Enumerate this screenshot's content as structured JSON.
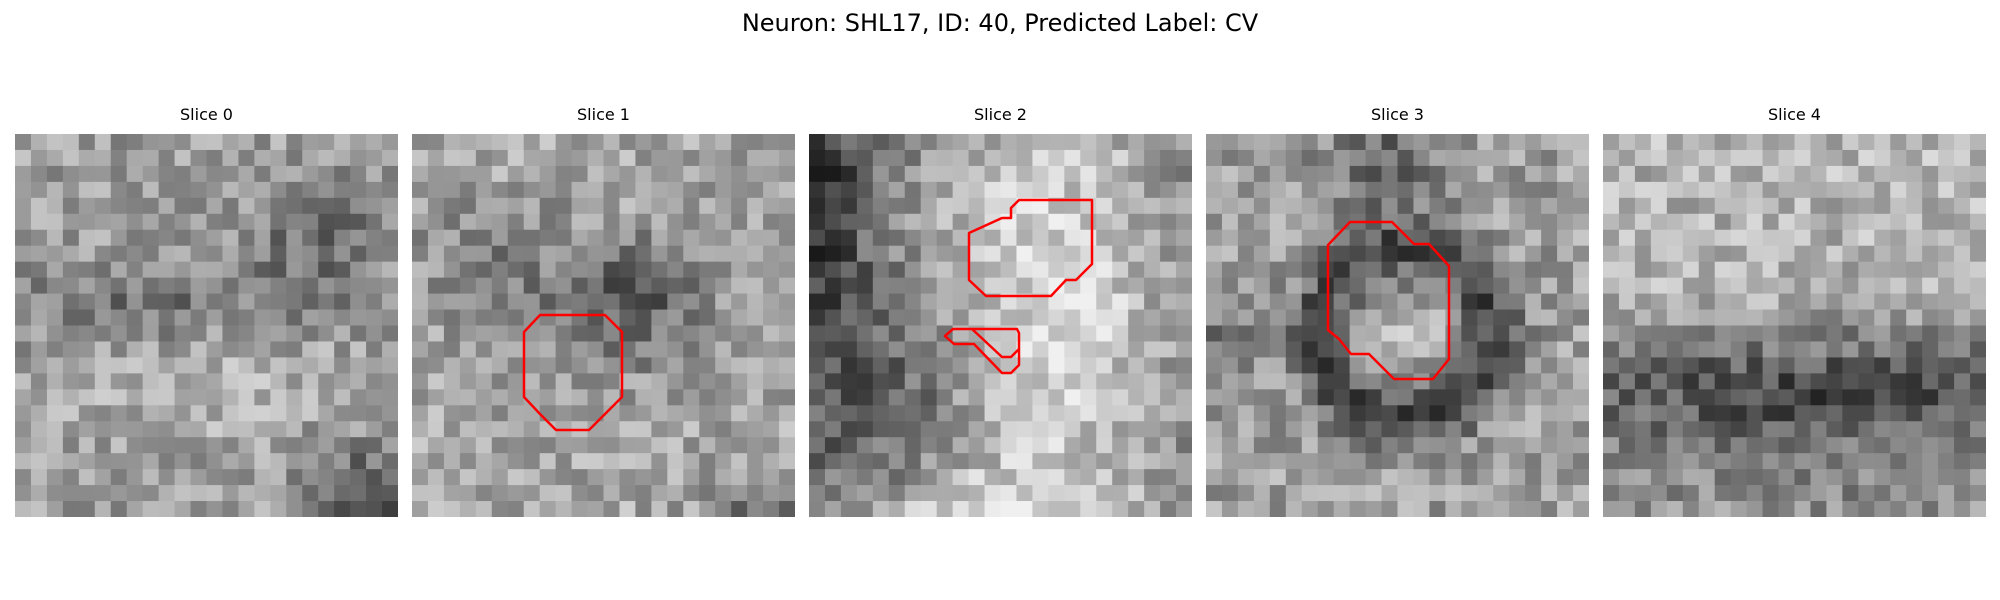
{
  "figure": {
    "title": "Neuron: SHL17, ID: 40, Predicted Label: CV"
  },
  "slices": [
    {
      "label": "Slice 0",
      "has_contour": false
    },
    {
      "label": "Slice 1",
      "has_contour": true
    },
    {
      "label": "Slice 2",
      "has_contour": true
    },
    {
      "label": "Slice 3",
      "has_contour": true
    },
    {
      "label": "Slice 4",
      "has_contour": false
    }
  ],
  "colors": {
    "contour": "#ff0000",
    "background": "#ffffff"
  }
}
